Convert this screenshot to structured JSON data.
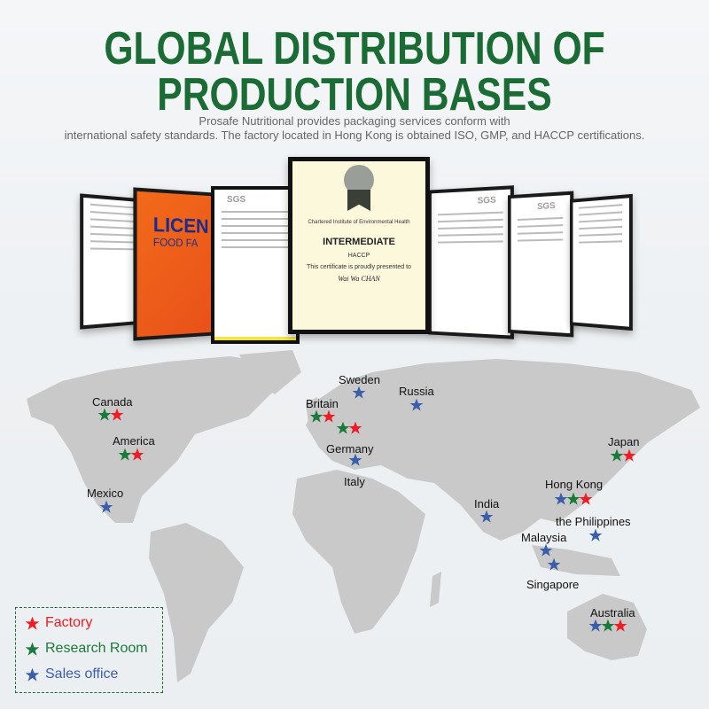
{
  "header": {
    "title_line1": "GLOBAL DISTRIBUTION OF",
    "title_line2": "PRODUCTION BASES",
    "subtitle_line1": "Prosafe Nutritional provides packaging services conform with",
    "subtitle_line2": "international safety standards. The factory located in Hong Kong is obtained ISO, GMP, and HACCP certifications."
  },
  "certificates": {
    "main": {
      "org": "Chartered Institute of Environmental Health",
      "level": "INTERMEDIATE",
      "course": "HACCP",
      "presented": "This certificate is proudly presented to",
      "name": "Wai Wa CHAN"
    },
    "license": {
      "title": "LICEN",
      "subtitle": "FOOD FA"
    },
    "sgs_label": "SGS"
  },
  "colors": {
    "factory": "#ee1c24",
    "research": "#1a7a3a",
    "sales": "#3a5eaa",
    "title": "#1a6b34",
    "land": "#c9c9c9"
  },
  "locations": [
    {
      "name": "Canada",
      "types": [
        "research",
        "factory"
      ]
    },
    {
      "name": "America",
      "types": [
        "research",
        "factory"
      ]
    },
    {
      "name": "Mexico",
      "types": [
        "sales"
      ]
    },
    {
      "name": "Britain",
      "types": [
        "research",
        "factory"
      ]
    },
    {
      "name": "Sweden",
      "types": [
        "sales"
      ]
    },
    {
      "name": "Russia",
      "types": [
        "sales"
      ]
    },
    {
      "name": "Germany",
      "types": [
        "research",
        "factory"
      ]
    },
    {
      "name": "Italy",
      "types": [
        "sales"
      ]
    },
    {
      "name": "India",
      "types": [
        "sales"
      ]
    },
    {
      "name": "Hong Kong",
      "types": [
        "sales",
        "research",
        "factory"
      ]
    },
    {
      "name": "Japan",
      "types": [
        "research",
        "factory"
      ]
    },
    {
      "name": "the Philippines",
      "types": [
        "sales"
      ]
    },
    {
      "name": "Malaysia",
      "types": [
        "sales"
      ]
    },
    {
      "name": "Singapore",
      "types": [
        "sales"
      ]
    },
    {
      "name": "Australia",
      "types": [
        "sales",
        "research",
        "factory"
      ]
    }
  ],
  "legend": [
    {
      "label": "Factory",
      "type": "factory",
      "icon": "star-icon"
    },
    {
      "label": "Research Room",
      "type": "research",
      "icon": "star-icon"
    },
    {
      "label": "Sales office",
      "type": "sales",
      "icon": "star-icon"
    }
  ]
}
